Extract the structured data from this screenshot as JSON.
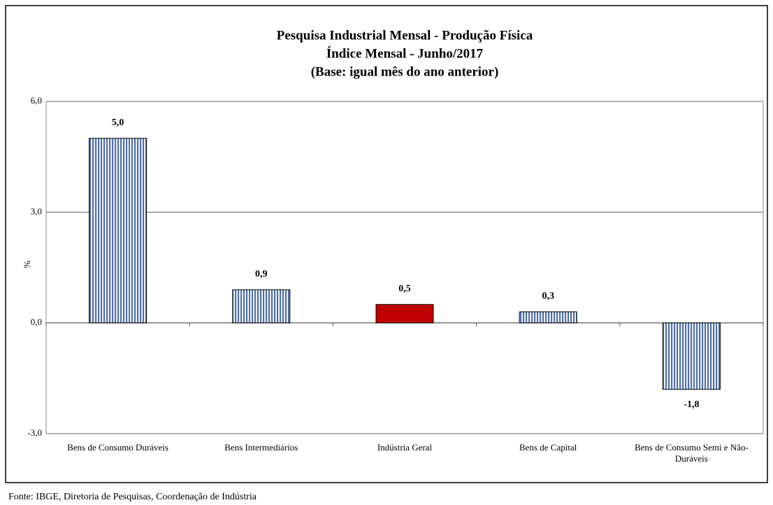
{
  "chart_data": {
    "type": "bar",
    "title": [
      "Pesquisa Industrial Mensal - Produção Física",
      "Índice Mensal - Junho/2017",
      "(Base: igual mês do ano anterior)"
    ],
    "ylabel": "%",
    "categories": [
      "Bens de Consumo Duráveis",
      "Bens Intermediários",
      "Indústria Geral",
      "Bens de Capital",
      "Bens de Consumo Semi e Não-Duráveis"
    ],
    "values": [
      5.0,
      0.9,
      0.5,
      0.3,
      -1.8
    ],
    "value_labels": [
      "5,0",
      "0,9",
      "0,5",
      "0,3",
      "-1,8"
    ],
    "colors": [
      "#4f6fa8",
      "#4f6fa8",
      "#c00000",
      "#4f6fa8",
      "#4f6fa8"
    ],
    "patterns": [
      "striped",
      "striped",
      "solid",
      "striped",
      "striped"
    ],
    "ylim": [
      -3,
      6
    ],
    "yticks": [
      {
        "value": -3,
        "label": "-3,0"
      },
      {
        "value": 0,
        "label": "0,0"
      },
      {
        "value": 3,
        "label": "3,0"
      },
      {
        "value": 6,
        "label": "6,0"
      }
    ],
    "grid": true,
    "source": "Fonte: IBGE, Diretoria de Pesquisas, Coordenação de Indústria"
  }
}
